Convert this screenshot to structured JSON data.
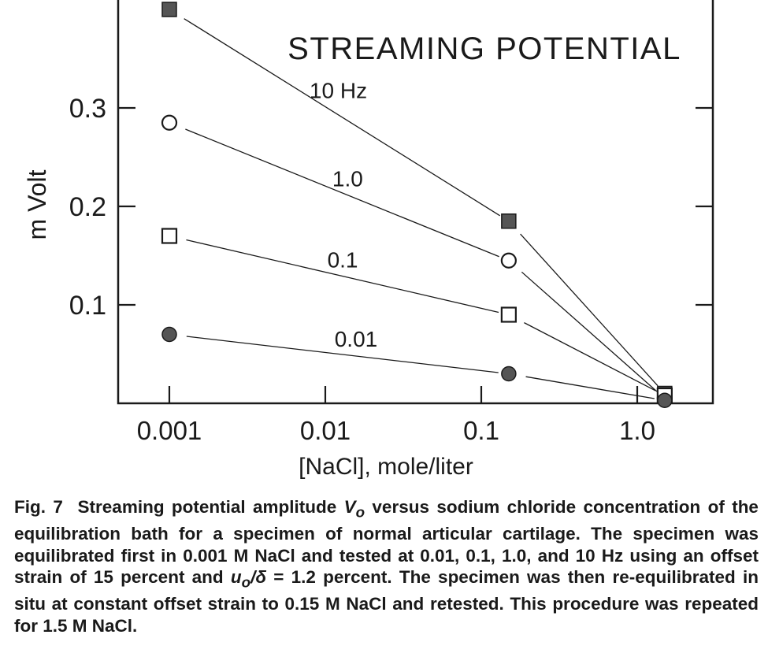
{
  "chart_data": {
    "type": "line",
    "title": "STREAMING POTENTIAL",
    "xlabel": "[NaCl], mole/liter",
    "ylabel": "m Volt",
    "x_scale": "log",
    "xlim": [
      0.001,
      2.0
    ],
    "ylim": [
      0.0,
      0.4
    ],
    "x_ticks": [
      0.001,
      0.01,
      0.1,
      1.0
    ],
    "x_tick_labels": [
      "0.001",
      "0.01",
      "0.1",
      "1.0"
    ],
    "y_ticks": [
      0.1,
      0.2,
      0.3
    ],
    "y_tick_labels": [
      "0.1",
      "0.2",
      "0.3"
    ],
    "grid": false,
    "legend": "none",
    "x": [
      0.001,
      0.15,
      1.5
    ],
    "series": [
      {
        "name": "10 Hz",
        "marker": "filled-square",
        "values": [
          0.4,
          0.185,
          0.01
        ]
      },
      {
        "name": "1.0",
        "marker": "open-circle",
        "values": [
          0.285,
          0.145,
          0.005
        ]
      },
      {
        "name": "0.1",
        "marker": "open-square",
        "values": [
          0.17,
          0.09,
          0.008
        ]
      },
      {
        "name": "0.01",
        "marker": "filled-circle",
        "values": [
          0.07,
          0.03,
          0.003
        ]
      }
    ]
  },
  "caption": {
    "fig_label": "Fig. 7",
    "text_1": "Streaming potential amplitude",
    "symbol_v": "V",
    "symbol_sub": "o",
    "text_2": "versus sodium chloride concentration of the equilibration bath for a specimen of normal articular cartilage. The specimen was equilibrated first in 0.001 M NaCl and tested at 0.01, 0.1, 1.0, and 10 Hz using an offset strain of 15 percent and",
    "symbol_u": "u",
    "symbol_u_sub": "o",
    "symbol_delta": "/δ",
    "text_3": "= 1.2 percent. The specimen was then re-equilibrated in situ at constant offset strain to 0.15 M NaCl and retested. This procedure was repeated for 1.5 M NaCl."
  },
  "colors": {
    "ink": "#1a1a1a",
    "filled_marker": "#555555",
    "background": "#ffffff"
  }
}
